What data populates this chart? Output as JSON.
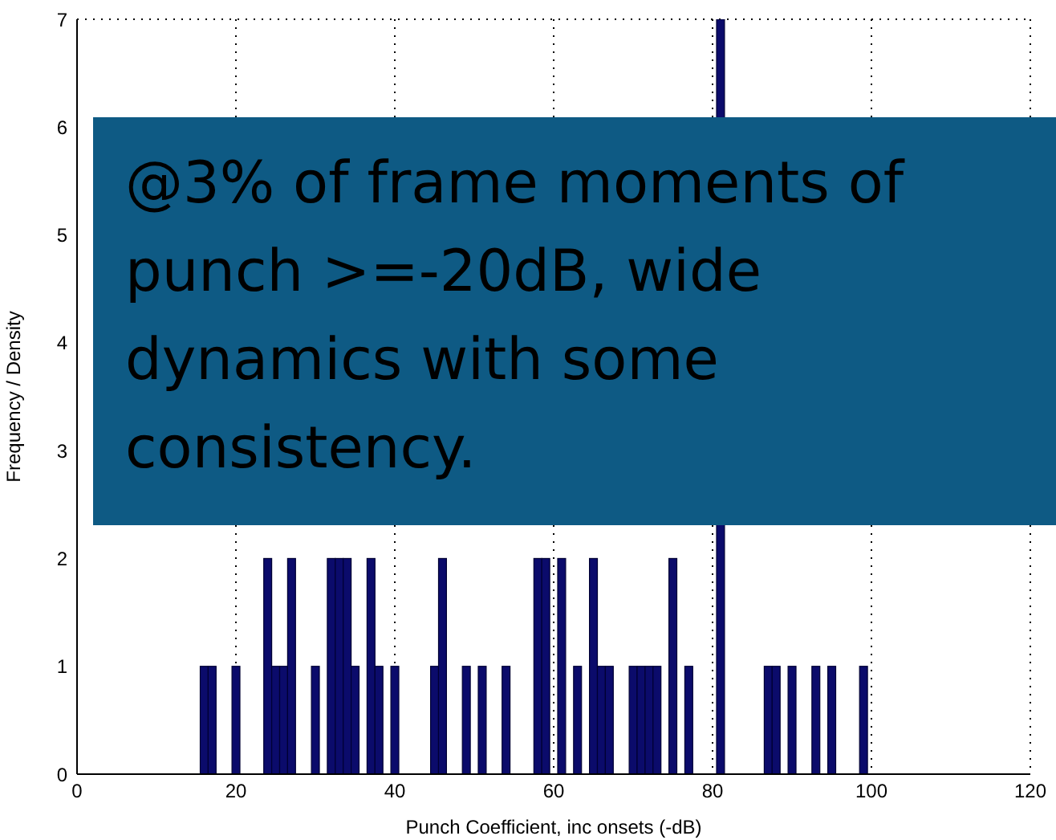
{
  "chart_data": {
    "type": "histogram",
    "xlabel": "Punch Coefficient, inc onsets (-dB)",
    "ylabel": "Frequency / Density",
    "annotations": [
      "@3% of frame moments of punch >=-20dB, wide dynamics with some consistency."
    ],
    "bins": [
      15.5,
      16.5,
      17.5,
      18.5,
      19.5,
      20.5,
      21.5,
      22.5,
      23.5,
      24.5,
      25.5,
      26.5,
      27.5,
      28.5,
      29.5,
      30.5,
      31.5,
      32.5,
      33.5,
      34.5,
      35.5,
      36.5,
      37.5,
      38.5,
      39.5,
      40.5,
      41.5,
      42.5,
      43.5,
      44.5,
      45.5,
      46.5,
      47.5,
      48.5,
      49.5,
      50.5,
      51.5,
      52.5,
      53.5,
      54.5,
      55.5,
      56.5,
      57.5,
      58.5,
      59.5,
      60.5,
      61.5,
      62.5,
      63.5,
      64.5,
      65.5,
      66.5,
      67.5,
      68.5,
      69.5,
      70.5,
      71.5,
      72.5,
      73.5,
      74.5,
      75.5,
      76.5,
      77.5,
      78.5,
      79.5,
      80.5,
      81.5,
      82.5,
      83.5,
      84.5,
      85.5,
      86.5,
      87.5,
      88.5,
      89.5,
      90.5,
      91.5,
      92.5,
      93.5,
      94.5,
      95.5,
      96.5,
      97.5,
      98.5,
      99.5
    ],
    "values": [
      1,
      1,
      0,
      0,
      1,
      0,
      0,
      0,
      2,
      1,
      1,
      2,
      null,
      null,
      1,
      0,
      2,
      2,
      2,
      1,
      null,
      2,
      1,
      0,
      1,
      0,
      null,
      0,
      0,
      1,
      2,
      0,
      null,
      1,
      0,
      1,
      0,
      0,
      1,
      0,
      0,
      0,
      2,
      2,
      0,
      2,
      0,
      1,
      0,
      2,
      1,
      1,
      0,
      0,
      1,
      1,
      1,
      1,
      null,
      2,
      null,
      1,
      null,
      null,
      null,
      7,
      null,
      null,
      null,
      null,
      null,
      1,
      1,
      0,
      1,
      0,
      0,
      1,
      0,
      1,
      0,
      0,
      0,
      1
    ],
    "color": "#0b0b6b",
    "xlim": [
      0,
      120
    ],
    "xticks": [
      0,
      20,
      40,
      60,
      80,
      100,
      120
    ],
    "ylim": [
      0,
      7
    ],
    "yticks": [
      0,
      1,
      2,
      3,
      4,
      5,
      6,
      7
    ],
    "grid": true
  }
}
